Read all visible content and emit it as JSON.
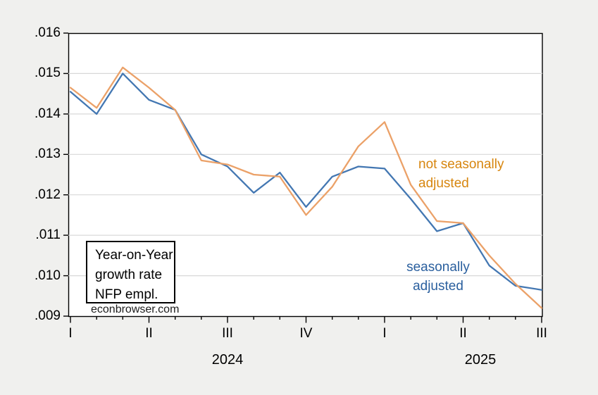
{
  "chart_data": {
    "type": "line",
    "title": "",
    "x_axis": {
      "quarter_tick_labels": [
        "I",
        "II",
        "III",
        "IV",
        "I",
        "II",
        "III"
      ],
      "year_labels": [
        "2024",
        "2025"
      ],
      "months_per_quarter": 3,
      "n_points": 19
    },
    "y_axis": {
      "tick_labels": [
        ".016",
        ".015",
        ".014",
        ".013",
        ".012",
        ".011",
        ".010",
        ".009"
      ],
      "min": 0.009,
      "max": 0.016,
      "tick_step": 0.001
    },
    "grid": "horizontal-only",
    "legend_position": "inline-text-labels",
    "series": [
      {
        "name": "seasonally adjusted",
        "line_color": "#4377b2",
        "label_color": "#2a5f9e",
        "values": [
          0.01455,
          0.014,
          0.015,
          0.01435,
          0.0141,
          0.013,
          0.0127,
          0.01205,
          0.01255,
          0.0117,
          0.01245,
          0.0127,
          0.01265,
          0.0119,
          0.0111,
          0.0113,
          0.01025,
          0.00975,
          0.00965
        ]
      },
      {
        "name": "not seasonally adjusted",
        "line_color": "#eba168",
        "label_color": "#d7860f",
        "values": [
          0.01465,
          0.01415,
          0.01515,
          0.01465,
          0.0141,
          0.01285,
          0.01275,
          0.0125,
          0.01245,
          0.0115,
          0.0122,
          0.0132,
          0.0138,
          0.01225,
          0.01135,
          0.0113,
          0.0105,
          0.0098,
          0.0092
        ]
      }
    ]
  },
  "annotation_box": {
    "lines": [
      "Year-on-Year",
      "growth rate",
      "NFP empl."
    ]
  },
  "watermark": "econbrowser.com",
  "series_labels": {
    "nsa": {
      "line1": "not seasonally",
      "line2": "adjusted"
    },
    "sa": {
      "line1": "seasonally",
      "line2": "adjusted"
    }
  },
  "colors": {
    "background": "#f0f0ee",
    "plot_background": "#ffffff",
    "grid": "#d8d8d8",
    "axis": "#000000"
  }
}
